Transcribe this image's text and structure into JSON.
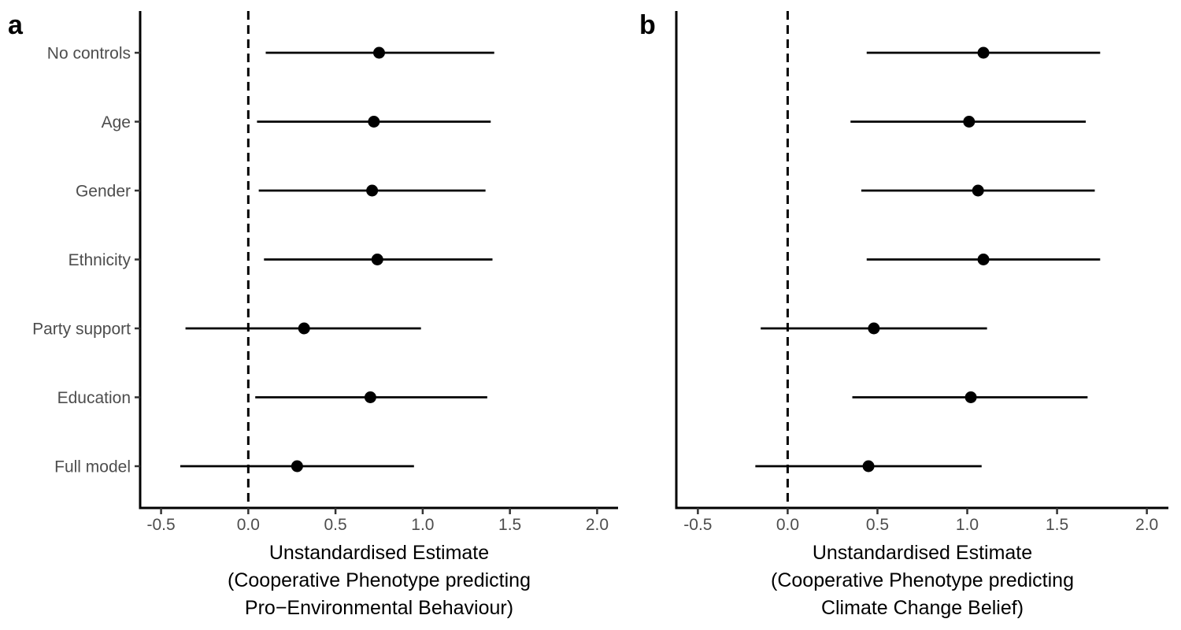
{
  "chart_data": [
    {
      "type": "scatter",
      "panel_label": "a",
      "categories": [
        "No controls",
        "Age",
        "Gender",
        "Ethnicity",
        "Party support",
        "Education",
        "Full model"
      ],
      "estimates": [
        0.75,
        0.72,
        0.71,
        0.74,
        0.32,
        0.7,
        0.28
      ],
      "ci_lower": [
        0.1,
        0.05,
        0.06,
        0.09,
        -0.36,
        0.04,
        -0.39
      ],
      "ci_upper": [
        1.41,
        1.39,
        1.36,
        1.4,
        0.99,
        1.37,
        0.95
      ],
      "xlim": [
        -0.62,
        2.12
      ],
      "xticks": [
        -0.5,
        0.0,
        0.5,
        1.0,
        1.5,
        2.0
      ],
      "xtick_labels": [
        "-0.5",
        "0.0",
        "0.5",
        "1.0",
        "1.5",
        "2.0"
      ],
      "reference_line_x": 0,
      "xlabel_lines": [
        "Unstandardised Estimate",
        "(Cooperative Phenotype predicting",
        "Pro−Environmental Behaviour)"
      ],
      "show_y_labels": true,
      "grid": false
    },
    {
      "type": "scatter",
      "panel_label": "b",
      "categories": [
        "No controls",
        "Age",
        "Gender",
        "Ethnicity",
        "Party support",
        "Education",
        "Full model"
      ],
      "estimates": [
        1.09,
        1.01,
        1.06,
        1.09,
        0.48,
        1.02,
        0.45
      ],
      "ci_lower": [
        0.44,
        0.35,
        0.41,
        0.44,
        -0.15,
        0.36,
        -0.18
      ],
      "ci_upper": [
        1.74,
        1.66,
        1.71,
        1.74,
        1.11,
        1.67,
        1.08
      ],
      "xlim": [
        -0.62,
        2.12
      ],
      "xticks": [
        -0.5,
        0.0,
        0.5,
        1.0,
        1.5,
        2.0
      ],
      "xtick_labels": [
        "-0.5",
        "0.0",
        "0.5",
        "1.0",
        "1.5",
        "2.0"
      ],
      "reference_line_x": 0,
      "xlabel_lines": [
        "Unstandardised Estimate",
        "(Cooperative Phenotype predicting",
        "Climate Change Belief)"
      ],
      "show_y_labels": false,
      "grid": false
    }
  ]
}
